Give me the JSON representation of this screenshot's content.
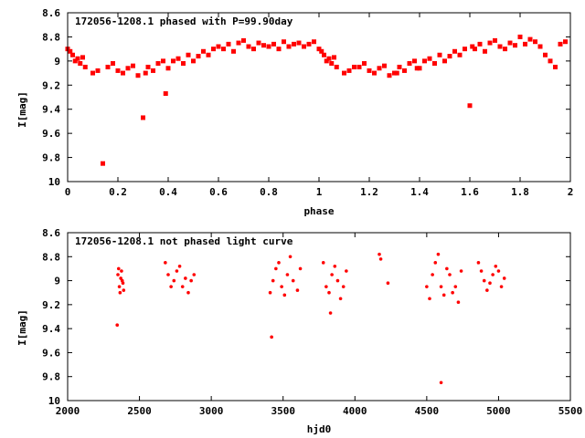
{
  "chart_data": [
    {
      "type": "scatter",
      "title": "172056-1208.1 phased with P=99.90day",
      "xlabel": "phase",
      "ylabel": "I[mag]",
      "xlim": [
        0,
        2
      ],
      "ylim": [
        10,
        8.6
      ],
      "y_inverted": true,
      "xticks": [
        0,
        0.2,
        0.4,
        0.6,
        0.8,
        1,
        1.2,
        1.4,
        1.6,
        1.8,
        2
      ],
      "yticks": [
        8.6,
        8.8,
        9,
        9.2,
        9.4,
        9.6,
        9.8,
        10
      ],
      "marker": "filled-square",
      "color": "#ff0000",
      "grid": false,
      "series": [
        {
          "x": [
            0.0,
            0.01,
            0.02,
            0.03,
            0.04,
            0.05,
            0.06,
            0.07,
            0.1,
            0.12,
            0.14,
            0.16,
            0.18,
            0.2,
            0.22,
            0.24,
            0.26,
            0.28,
            0.3,
            0.31,
            0.32,
            0.34,
            0.36,
            0.38,
            0.39,
            0.4,
            0.42,
            0.44,
            0.46,
            0.48,
            0.5,
            0.52,
            0.54,
            0.56,
            0.58,
            0.6,
            0.62,
            0.64,
            0.66,
            0.68,
            0.7,
            0.72,
            0.74,
            0.76,
            0.78,
            0.8,
            0.82,
            0.84,
            0.86,
            0.88,
            0.9,
            0.92,
            0.94,
            0.96,
            0.98,
            1.0,
            1.01,
            1.02,
            1.03,
            1.04,
            1.05,
            1.06,
            1.07,
            1.1,
            1.12,
            1.14,
            1.16,
            1.18,
            1.2,
            1.22,
            1.24,
            1.26,
            1.28,
            1.3,
            1.31,
            1.32,
            1.34,
            1.36,
            1.38,
            1.39,
            1.4,
            1.42,
            1.44,
            1.46,
            1.48,
            1.5,
            1.52,
            1.54,
            1.56,
            1.58,
            1.6,
            1.61,
            1.62,
            1.64,
            1.66,
            1.68,
            1.7,
            1.72,
            1.74,
            1.76,
            1.78,
            1.8,
            1.82,
            1.84,
            1.86,
            1.88,
            1.9,
            1.92,
            1.94,
            1.96,
            1.98
          ],
          "y": [
            8.9,
            8.92,
            8.95,
            9.0,
            8.98,
            9.02,
            8.97,
            9.05,
            9.1,
            9.08,
            9.85,
            9.05,
            9.02,
            9.08,
            9.1,
            9.06,
            9.04,
            9.12,
            9.47,
            9.1,
            9.05,
            9.08,
            9.02,
            9.0,
            9.27,
            9.06,
            9.0,
            8.98,
            9.02,
            8.95,
            9.0,
            8.96,
            8.92,
            8.95,
            8.9,
            8.88,
            8.9,
            8.86,
            8.92,
            8.85,
            8.83,
            8.88,
            8.9,
            8.85,
            8.87,
            8.88,
            8.86,
            8.9,
            8.84,
            8.88,
            8.86,
            8.85,
            8.88,
            8.86,
            8.84,
            8.9,
            8.92,
            8.95,
            9.0,
            8.98,
            9.02,
            8.97,
            9.05,
            9.1,
            9.08,
            9.05,
            9.05,
            9.02,
            9.08,
            9.1,
            9.06,
            9.04,
            9.12,
            9.1,
            9.1,
            9.05,
            9.08,
            9.02,
            9.0,
            9.06,
            9.06,
            9.0,
            8.98,
            9.02,
            8.95,
            9.0,
            8.96,
            8.92,
            8.95,
            8.9,
            9.37,
            8.88,
            8.9,
            8.86,
            8.92,
            8.85,
            8.83,
            8.88,
            8.9,
            8.85,
            8.87,
            8.8,
            8.86,
            8.82,
            8.84,
            8.88,
            8.95,
            9.0,
            9.05,
            8.86,
            8.84
          ]
        }
      ]
    },
    {
      "type": "scatter",
      "title": "172056-1208.1 not phased light curve",
      "xlabel": "hjd0",
      "ylabel": "I[mag]",
      "xlim": [
        2000,
        5500
      ],
      "ylim": [
        10,
        8.6
      ],
      "y_inverted": true,
      "xticks": [
        2000,
        2500,
        3000,
        3500,
        4000,
        4500,
        5000,
        5500
      ],
      "yticks": [
        8.6,
        8.8,
        9,
        9.2,
        9.4,
        9.6,
        9.8,
        10
      ],
      "marker": "dot",
      "color": "#ff0000",
      "grid": false,
      "series": [
        {
          "x": [
            2350,
            2360,
            2370,
            2380,
            2390,
            2355,
            2365,
            2375,
            2385,
            2680,
            2700,
            2720,
            2740,
            2760,
            2780,
            2800,
            2820,
            2840,
            2860,
            2880,
            3410,
            3430,
            3450,
            3470,
            3490,
            3510,
            3530,
            3550,
            3570,
            3600,
            3620,
            3780,
            3800,
            3820,
            3840,
            3860,
            3880,
            3900,
            3920,
            3940,
            4170,
            4180,
            4230,
            4500,
            4520,
            4540,
            4560,
            4580,
            4600,
            4620,
            4640,
            4660,
            4680,
            4700,
            4720,
            4740,
            4860,
            4880,
            4900,
            4920,
            4940,
            4960,
            4980,
            5000,
            5020,
            5040,
            4600,
            3420,
            3830,
            2345
          ],
          "y": [
            8.95,
            9.05,
            8.98,
            9.0,
            9.08,
            8.9,
            9.1,
            8.92,
            9.02,
            8.85,
            8.95,
            9.05,
            9.0,
            8.92,
            8.88,
            9.05,
            8.98,
            9.1,
            9.0,
            8.95,
            9.1,
            9.0,
            8.9,
            8.85,
            9.05,
            9.12,
            8.95,
            8.8,
            9.0,
            9.08,
            8.9,
            8.85,
            9.05,
            9.1,
            8.95,
            8.88,
            9.0,
            9.15,
            9.05,
            8.92,
            8.78,
            8.82,
            9.02,
            9.05,
            9.15,
            8.95,
            8.85,
            8.78,
            9.05,
            9.12,
            8.9,
            8.95,
            9.1,
            9.05,
            9.18,
            8.92,
            8.85,
            8.92,
            9.0,
            9.08,
            9.02,
            8.95,
            8.88,
            8.92,
            9.05,
            8.98,
            9.85,
            9.47,
            9.27,
            9.37
          ]
        }
      ]
    }
  ]
}
